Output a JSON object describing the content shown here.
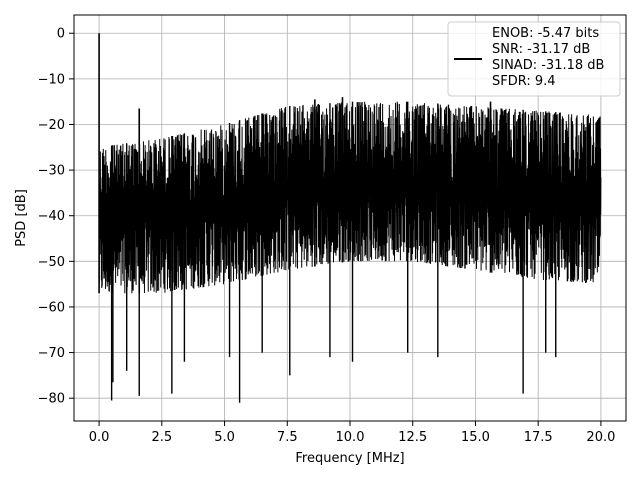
{
  "chart_data": {
    "type": "line",
    "title": "",
    "xlabel": "Frequency [MHz]",
    "ylabel": "PSD [dB]",
    "xlim": [
      -1.0,
      21.0
    ],
    "ylim": [
      -85.0,
      4.0
    ],
    "x_ticks": [
      0.0,
      2.5,
      5.0,
      7.5,
      10.0,
      12.5,
      15.0,
      17.5,
      20.0
    ],
    "x_tick_labels": [
      "0.0",
      "2.5",
      "5.0",
      "7.5",
      "10.0",
      "12.5",
      "15.0",
      "17.5",
      "20.0"
    ],
    "y_ticks": [
      0,
      -10,
      -20,
      -30,
      -40,
      -50,
      -60,
      -70,
      -80
    ],
    "y_tick_labels": [
      "0",
      "−10",
      "−20",
      "−30",
      "−40",
      "−50",
      "−60",
      "−70",
      "−80"
    ],
    "grid": true,
    "legend_position": "top-right",
    "line_color": "#000000",
    "series": [
      {
        "name": "",
        "legend_lines": [
          "ENOB: -5.47 bits",
          "SNR: -31.17 dB",
          "SINAD: -31.18 dB",
          "SFDR: 9.4"
        ],
        "x_range": [
          0.0,
          20.0
        ],
        "noise_band_upper": [
          [
            0.0,
            -25
          ],
          [
            2.5,
            -23
          ],
          [
            5.0,
            -20
          ],
          [
            7.5,
            -16
          ],
          [
            10.0,
            -15
          ],
          [
            12.5,
            -15
          ],
          [
            15.0,
            -16
          ],
          [
            17.5,
            -17
          ],
          [
            20.0,
            -18
          ]
        ],
        "noise_band_lower": [
          [
            0.0,
            -57
          ],
          [
            2.5,
            -57
          ],
          [
            5.0,
            -55
          ],
          [
            7.5,
            -52
          ],
          [
            10.0,
            -50
          ],
          [
            12.5,
            -50
          ],
          [
            15.0,
            -52
          ],
          [
            17.5,
            -54
          ],
          [
            20.0,
            -55
          ]
        ],
        "peaks": [
          [
            0.0,
            0.0
          ],
          [
            1.6,
            -16.5
          ],
          [
            8.6,
            -14.5
          ],
          [
            9.7,
            -14.0
          ],
          [
            15.6,
            -15.0
          ]
        ],
        "dips": [
          [
            0.5,
            -80.5
          ],
          [
            0.55,
            -76.5
          ],
          [
            1.1,
            -74
          ],
          [
            1.6,
            -79.5
          ],
          [
            2.9,
            -79
          ],
          [
            3.4,
            -72
          ],
          [
            5.2,
            -71
          ],
          [
            5.6,
            -81
          ],
          [
            6.5,
            -70
          ],
          [
            7.6,
            -75
          ],
          [
            9.2,
            -71
          ],
          [
            10.1,
            -72
          ],
          [
            12.3,
            -70
          ],
          [
            13.5,
            -71
          ],
          [
            16.9,
            -79
          ],
          [
            17.8,
            -70
          ],
          [
            18.2,
            -71
          ]
        ]
      }
    ]
  }
}
